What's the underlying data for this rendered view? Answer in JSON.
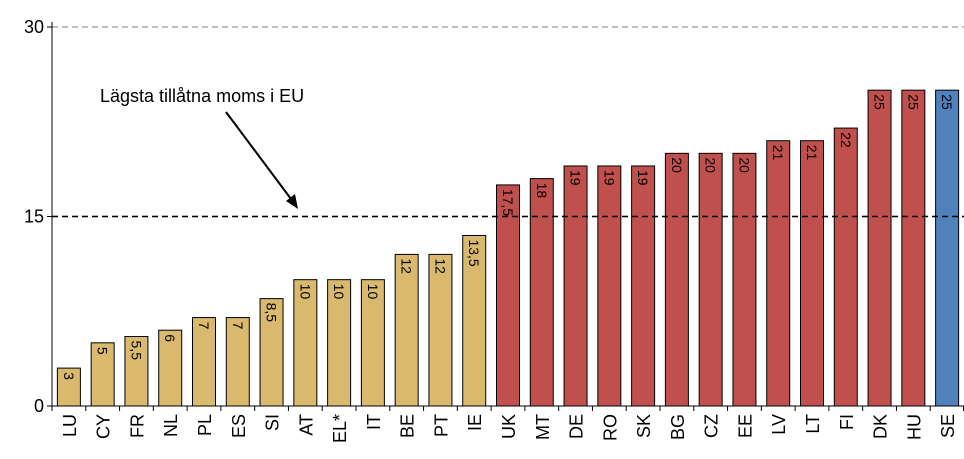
{
  "chart_data": {
    "type": "bar",
    "categories": [
      "LU",
      "CY",
      "FR",
      "NL",
      "PL",
      "ES",
      "SI",
      "AT",
      "EL*",
      "IT",
      "BE",
      "PT",
      "IE",
      "UK",
      "MT",
      "DE",
      "RO",
      "SK",
      "BG",
      "CZ",
      "EE",
      "LV",
      "LT",
      "FI",
      "DK",
      "HU",
      "SE"
    ],
    "values": [
      3,
      5,
      5.5,
      6,
      7,
      7,
      8.5,
      10,
      10,
      10,
      12,
      12,
      13.5,
      17.5,
      18,
      19,
      19,
      19,
      20,
      20,
      20,
      21,
      21,
      22,
      25,
      25,
      25
    ],
    "value_labels": [
      "3",
      "5",
      "5,5",
      "6",
      "7",
      "7",
      "8,5",
      "10",
      "10",
      "10",
      "12",
      "12",
      "13,5",
      "17,5",
      "18",
      "19",
      "19",
      "19",
      "20",
      "20",
      "20",
      "21",
      "21",
      "22",
      "25",
      "25",
      "25"
    ],
    "colors": [
      "#d9b96e",
      "#d9b96e",
      "#d9b96e",
      "#d9b96e",
      "#d9b96e",
      "#d9b96e",
      "#d9b96e",
      "#d9b96e",
      "#d9b96e",
      "#d9b96e",
      "#d9b96e",
      "#d9b96e",
      "#d9b96e",
      "#c0504d",
      "#c0504d",
      "#c0504d",
      "#c0504d",
      "#c0504d",
      "#c0504d",
      "#c0504d",
      "#c0504d",
      "#c0504d",
      "#c0504d",
      "#c0504d",
      "#c0504d",
      "#c0504d",
      "#4f81bd"
    ],
    "ylim": [
      0,
      30
    ],
    "yticks": [
      0,
      15,
      30
    ],
    "grid": true,
    "reference_line": {
      "value": 15,
      "label": "Lägsta tillåtna moms i EU"
    }
  }
}
